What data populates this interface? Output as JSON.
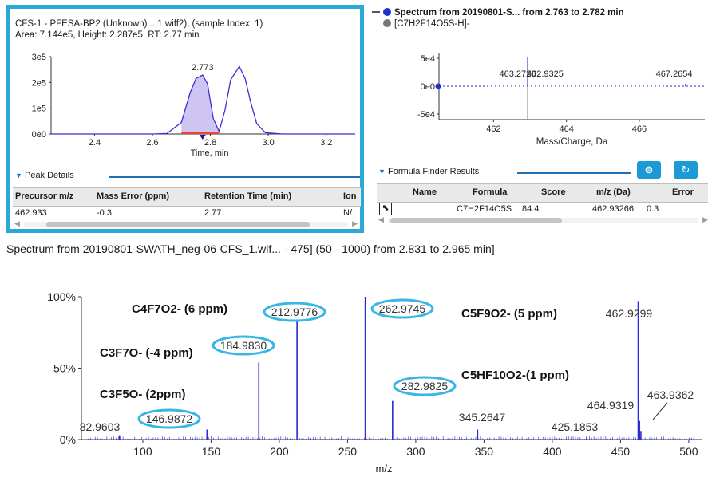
{
  "colors": {
    "accent_border": "#2aa9d6",
    "trace": "#3b2fd8",
    "fill": "#c9bff2",
    "spectrum_blue": "#2a2ad8",
    "callout": "#3ab6e6",
    "header_bg": "#e9e9e9"
  },
  "xic_panel": {
    "title_line1": "CFS-1 - PFESA-BP2 (Unknown) ...1.wiff2), (sample Index: 1)",
    "title_line2": "Area: 7.144e5, Height: 2.287e5, RT: 2.77 min"
  },
  "spectrum_panel": {
    "legend": [
      {
        "label": "Spectrum from 20190801-S... from 2.763 to 2.782 min",
        "color": "#1f2fd0",
        "icon": "filled-circle-icon"
      },
      {
        "label": "[C7H2F14O5S-H]-",
        "color": "#777777",
        "icon": "gray-circle-icon"
      }
    ]
  },
  "peak_details": {
    "header": "Peak Details",
    "columns": [
      "Precursor m/z",
      "Mass Error (ppm)",
      "Retention Time (min)",
      "Ion"
    ],
    "rows": [
      [
        "462.933",
        "-0.3",
        "2.77",
        "N/"
      ]
    ]
  },
  "formula_finder": {
    "header": "Formula Finder Results",
    "columns": [
      "Name",
      "Formula",
      "Score",
      "m/z (Da)",
      "Error"
    ],
    "rows": [
      [
        "",
        "C7H2F14O5S",
        "84.4",
        "462.93266",
        "0.3"
      ]
    ],
    "icons": [
      "search-zoom-icon",
      "refresh-icon",
      "expand-arrow-icon"
    ]
  },
  "chart_data": [
    {
      "id": "xic",
      "type": "line",
      "xlabel": "Time, min",
      "xlim": [
        2.25,
        3.3
      ],
      "ylim": [
        0,
        300000
      ],
      "xticks": [
        "2.4",
        "2.6",
        "2.8",
        "3.0",
        "3.2"
      ],
      "yticks": [
        "0e0",
        "1e5",
        "2e5",
        "3e5"
      ],
      "series": [
        {
          "x": [
            2.25,
            2.6,
            2.65,
            2.7,
            2.73,
            2.75,
            2.773,
            2.79,
            2.81,
            2.83,
            2.85,
            2.87,
            2.9,
            2.92,
            2.94,
            2.96,
            2.99,
            3.05,
            3.3
          ],
          "y": [
            0,
            0,
            2000,
            45000,
            160000,
            215000,
            228700,
            195000,
            60000,
            10000,
            90000,
            210000,
            262000,
            215000,
            120000,
            40000,
            5000,
            0,
            0
          ]
        }
      ],
      "shaded_range": [
        2.7,
        2.83
      ],
      "annotations": [
        {
          "x": 2.773,
          "y": 228700,
          "text": "2.773"
        }
      ]
    },
    {
      "id": "spectrum_small",
      "type": "bar",
      "xlabel": "Mass/Charge, Da",
      "xlim": [
        460.5,
        467.8
      ],
      "ylim": [
        -60000,
        60000
      ],
      "xticks": [
        "462",
        "464",
        "466"
      ],
      "yticks": [
        "5e4",
        "0e0",
        "-5e4"
      ],
      "peaks": [
        {
          "mz": 462.9325,
          "intensity": 52000
        },
        {
          "mz": 463.272,
          "intensity": 6000
        },
        {
          "mz": 467.2654,
          "intensity": 4000
        },
        {
          "mz": 462.9327,
          "intensity": -60000
        }
      ],
      "annotations": [
        {
          "mz": 463.272,
          "text": "463.2720"
        },
        {
          "mz": 462.9325,
          "text": "462.9325"
        },
        {
          "mz": 467.2654,
          "text": "467.2654"
        }
      ]
    },
    {
      "id": "spectrum_main",
      "type": "bar",
      "title": "Spectrum from 20190801-SWATH_neg-06-CFS_1.wif... - 475] (50 - 1000) from 2.831 to 2.965 min]",
      "xlabel": "m/z",
      "xlim": [
        55,
        510
      ],
      "ylim": [
        0,
        100
      ],
      "xticks": [
        "100",
        "150",
        "200",
        "250",
        "300",
        "350",
        "400",
        "450",
        "500"
      ],
      "yticks": [
        "0%",
        "50%",
        "100%"
      ],
      "peaks": [
        {
          "mz": 82.9603,
          "intensity": 3
        },
        {
          "mz": 146.9872,
          "intensity": 7
        },
        {
          "mz": 184.983,
          "intensity": 54
        },
        {
          "mz": 212.9776,
          "intensity": 84
        },
        {
          "mz": 262.9745,
          "intensity": 100
        },
        {
          "mz": 282.9825,
          "intensity": 27
        },
        {
          "mz": 345.2647,
          "intensity": 7
        },
        {
          "mz": 425.1853,
          "intensity": 2
        },
        {
          "mz": 462.9299,
          "intensity": 97
        },
        {
          "mz": 463.9362,
          "intensity": 13
        },
        {
          "mz": 464.9319,
          "intensity": 6
        }
      ],
      "peak_labels": [
        "82.9603",
        "146.9872",
        "184.9830",
        "212.9776",
        "262.9745",
        "282.9825",
        "345.2647",
        "425.1853",
        "462.9299",
        "463.9362",
        "464.9319"
      ],
      "fragment_annotations": [
        {
          "text": "C4F7O2- (6 ppm)"
        },
        {
          "text": "C5F9O2- (5 ppm)"
        },
        {
          "text": "C3F7O- (-4 ppm)"
        },
        {
          "text": "C5HF10O2-(1 ppm)"
        },
        {
          "text": "C3F5O- (2ppm)"
        }
      ]
    }
  ]
}
